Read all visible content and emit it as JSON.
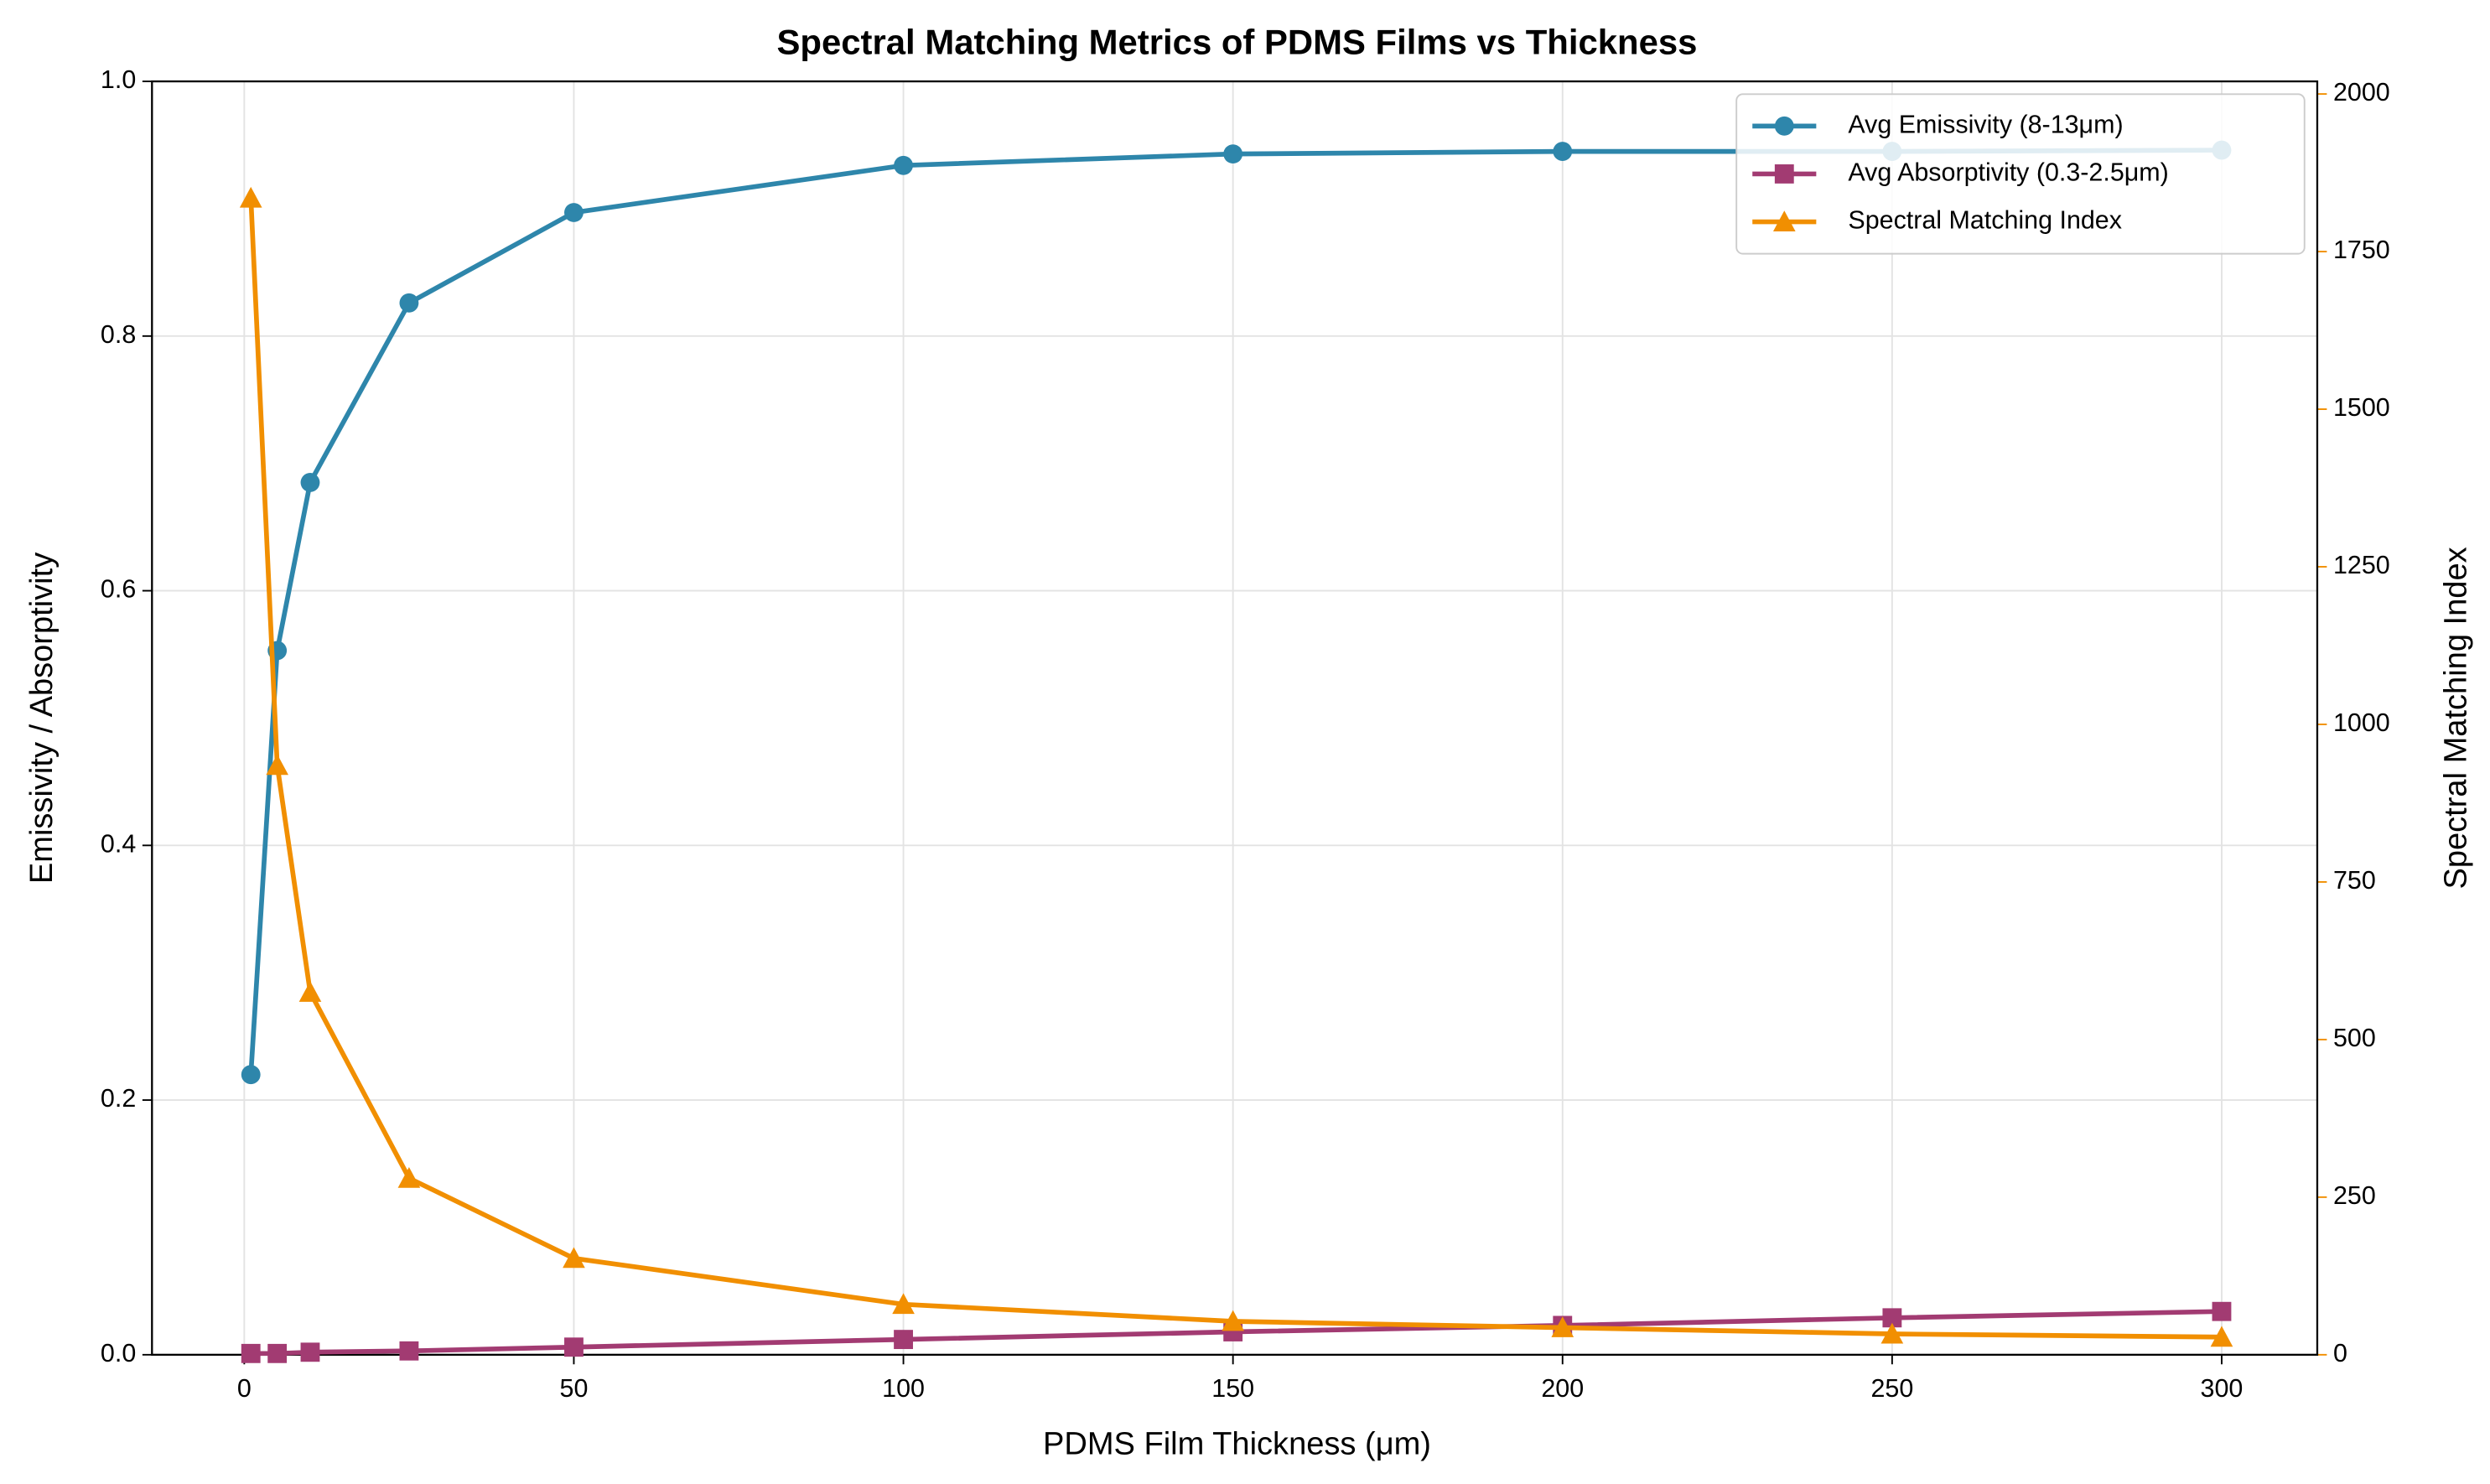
{
  "chart_data": {
    "type": "line",
    "title": "Spectral Matching Metrics of PDMS Films vs Thickness",
    "x_label": "PDMS Film Thickness (μm)",
    "y_label": "Emissivity / Absorptivity",
    "y2_label": "Spectral Matching Index",
    "x": [
      1,
      5,
      10,
      25,
      50,
      100,
      150,
      200,
      250,
      300
    ],
    "series": [
      {
        "name": "Avg Emissivity (8-13μm)",
        "color": "#2e86ab",
        "marker": "circle",
        "values": [
          0.22,
          0.553,
          0.685,
          0.826,
          0.897,
          0.934,
          0.943,
          0.945,
          0.945,
          0.946
        ]
      },
      {
        "name": "Avg Absorptivity (0.3-2.5μm)",
        "color": "#a23b72",
        "marker": "square",
        "values": [
          0.001,
          0.001,
          0.002,
          0.003,
          0.006,
          0.012,
          0.018,
          0.023,
          0.029,
          0.034
        ]
      },
      {
        "name": "Spectral Matching Index",
        "color": "#f18f01",
        "marker": "triangle",
        "axis": "y2",
        "values": [
          1835,
          935,
          575,
          280,
          153,
          80,
          53,
          43,
          33,
          28
        ]
      }
    ],
    "xlim": [
      -14,
      314.5
    ],
    "xticks": [
      0,
      50,
      100,
      150,
      200,
      250,
      300
    ],
    "ylim": [
      0,
      1
    ],
    "yticks": [
      0.0,
      0.2,
      0.4,
      0.6,
      0.8,
      1.0
    ],
    "y2lim": [
      0,
      2020
    ],
    "y2ticks": [
      0,
      250,
      500,
      750,
      1000,
      1250,
      1500,
      1750,
      2000
    ],
    "y2_color": "#f18f01",
    "grid": true,
    "legend": "upper right"
  }
}
